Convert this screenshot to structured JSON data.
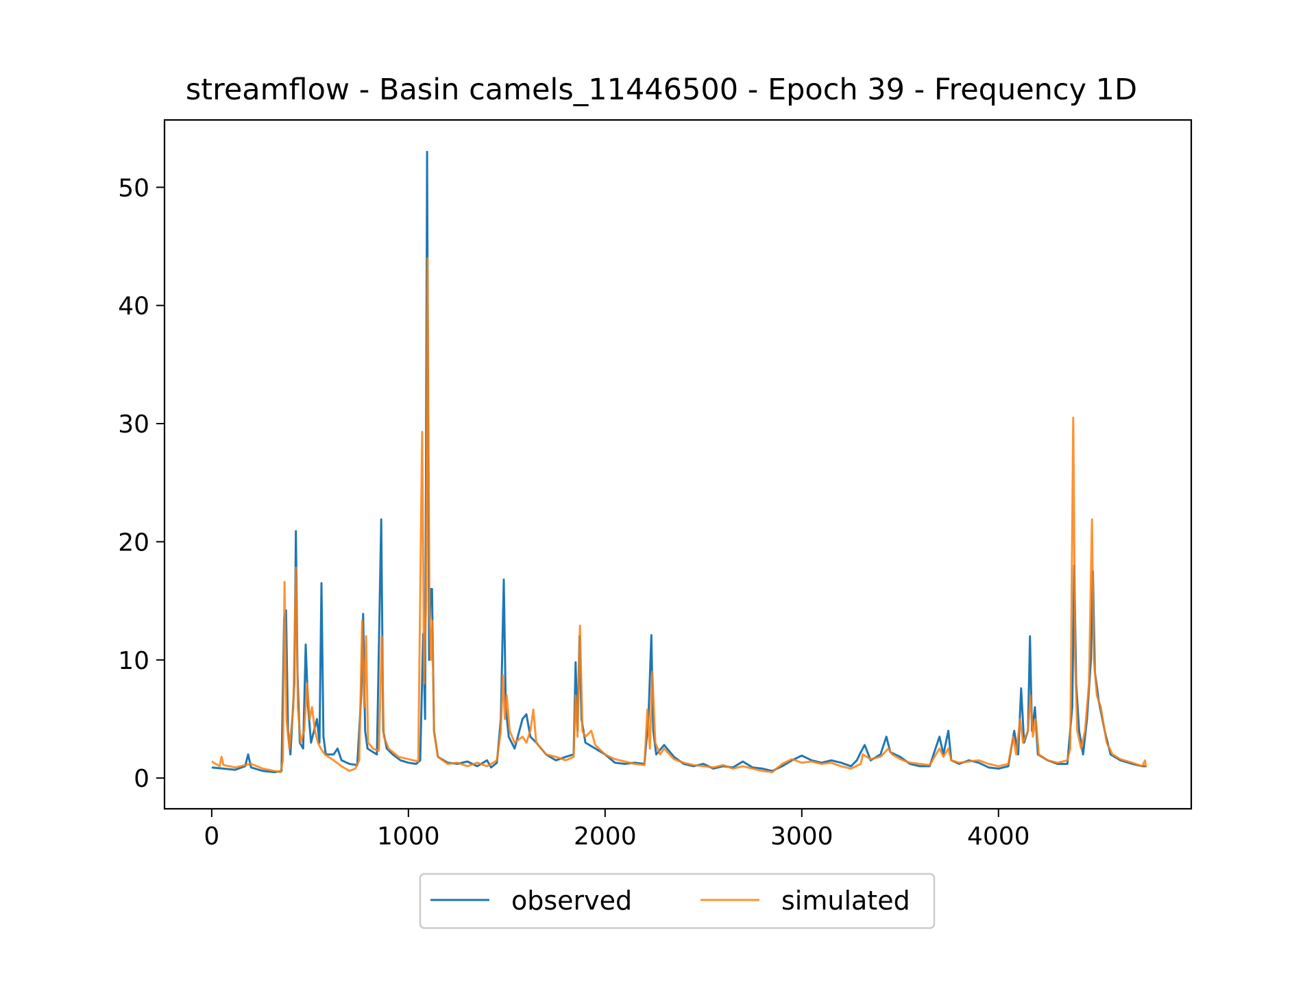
{
  "chart_data": {
    "type": "line",
    "title": "streamflow - Basin camels_11446500 - Epoch 39 - Frequency 1D",
    "xlabel": "",
    "ylabel": "",
    "xlim": [
      -240,
      4980
    ],
    "ylim": [
      -2.6,
      55.7
    ],
    "xticks": [
      0,
      1000,
      2000,
      3000,
      4000
    ],
    "yticks": [
      0,
      10,
      20,
      30,
      40,
      50
    ],
    "grid": false,
    "legend": {
      "placement": "bottom-center",
      "columns": 2
    },
    "series": [
      {
        "name": "observed",
        "color": "#1f77b4",
        "points": [
          [
            0,
            0.9
          ],
          [
            60,
            0.8
          ],
          [
            120,
            0.7
          ],
          [
            170,
            1.0
          ],
          [
            185,
            2.0
          ],
          [
            200,
            0.9
          ],
          [
            260,
            0.6
          ],
          [
            320,
            0.5
          ],
          [
            355,
            0.6
          ],
          [
            368,
            13.5
          ],
          [
            378,
            14.2
          ],
          [
            388,
            4.0
          ],
          [
            400,
            2.0
          ],
          [
            420,
            8.0
          ],
          [
            428,
            20.9
          ],
          [
            436,
            9.0
          ],
          [
            448,
            3.0
          ],
          [
            465,
            2.5
          ],
          [
            478,
            11.3
          ],
          [
            490,
            6.0
          ],
          [
            505,
            3.0
          ],
          [
            520,
            4.0
          ],
          [
            535,
            5.0
          ],
          [
            548,
            3.0
          ],
          [
            558,
            16.5
          ],
          [
            568,
            3.5
          ],
          [
            580,
            2.0
          ],
          [
            620,
            2.0
          ],
          [
            640,
            2.5
          ],
          [
            660,
            1.5
          ],
          [
            700,
            1.2
          ],
          [
            740,
            1.1
          ],
          [
            760,
            7.0
          ],
          [
            770,
            13.9
          ],
          [
            780,
            4.0
          ],
          [
            792,
            2.5
          ],
          [
            820,
            2.2
          ],
          [
            840,
            2.0
          ],
          [
            862,
            21.9
          ],
          [
            872,
            4.0
          ],
          [
            890,
            2.5
          ],
          [
            920,
            2.0
          ],
          [
            960,
            1.5
          ],
          [
            1000,
            1.3
          ],
          [
            1040,
            1.2
          ],
          [
            1060,
            1.5
          ],
          [
            1075,
            12.2
          ],
          [
            1085,
            5.0
          ],
          [
            1095,
            53.0
          ],
          [
            1105,
            10.0
          ],
          [
            1112,
            16.0
          ],
          [
            1120,
            16.0
          ],
          [
            1130,
            4.0
          ],
          [
            1150,
            1.8
          ],
          [
            1200,
            1.3
          ],
          [
            1250,
            1.2
          ],
          [
            1300,
            1.4
          ],
          [
            1350,
            1.0
          ],
          [
            1400,
            1.5
          ],
          [
            1420,
            0.9
          ],
          [
            1450,
            1.3
          ],
          [
            1470,
            5.0
          ],
          [
            1485,
            16.8
          ],
          [
            1495,
            6.0
          ],
          [
            1510,
            3.5
          ],
          [
            1540,
            2.5
          ],
          [
            1580,
            5.0
          ],
          [
            1600,
            5.4
          ],
          [
            1620,
            3.5
          ],
          [
            1650,
            3.0
          ],
          [
            1700,
            2.0
          ],
          [
            1750,
            1.5
          ],
          [
            1800,
            1.8
          ],
          [
            1840,
            2.0
          ],
          [
            1850,
            9.8
          ],
          [
            1860,
            4.0
          ],
          [
            1870,
            12.0
          ],
          [
            1880,
            5.0
          ],
          [
            1900,
            3.0
          ],
          [
            1950,
            2.5
          ],
          [
            2000,
            2.0
          ],
          [
            2050,
            1.3
          ],
          [
            2100,
            1.2
          ],
          [
            2150,
            1.3
          ],
          [
            2200,
            1.2
          ],
          [
            2220,
            5.0
          ],
          [
            2235,
            12.1
          ],
          [
            2245,
            4.0
          ],
          [
            2260,
            2.0
          ],
          [
            2300,
            2.8
          ],
          [
            2350,
            1.8
          ],
          [
            2400,
            1.2
          ],
          [
            2450,
            1.0
          ],
          [
            2500,
            1.2
          ],
          [
            2550,
            0.8
          ],
          [
            2600,
            1.0
          ],
          [
            2650,
            0.9
          ],
          [
            2700,
            1.4
          ],
          [
            2750,
            0.9
          ],
          [
            2800,
            0.8
          ],
          [
            2850,
            0.6
          ],
          [
            2900,
            1.0
          ],
          [
            2950,
            1.5
          ],
          [
            3000,
            1.9
          ],
          [
            3050,
            1.5
          ],
          [
            3100,
            1.3
          ],
          [
            3150,
            1.5
          ],
          [
            3200,
            1.3
          ],
          [
            3250,
            1.0
          ],
          [
            3280,
            1.5
          ],
          [
            3300,
            2.2
          ],
          [
            3320,
            2.8
          ],
          [
            3350,
            1.5
          ],
          [
            3400,
            2.0
          ],
          [
            3430,
            3.5
          ],
          [
            3450,
            2.2
          ],
          [
            3500,
            1.8
          ],
          [
            3550,
            1.2
          ],
          [
            3600,
            1.0
          ],
          [
            3650,
            1.0
          ],
          [
            3700,
            3.5
          ],
          [
            3720,
            2.0
          ],
          [
            3745,
            4.0
          ],
          [
            3760,
            1.5
          ],
          [
            3800,
            1.2
          ],
          [
            3850,
            1.5
          ],
          [
            3900,
            1.3
          ],
          [
            3950,
            0.9
          ],
          [
            4000,
            0.8
          ],
          [
            4050,
            1.0
          ],
          [
            4080,
            4.0
          ],
          [
            4100,
            2.0
          ],
          [
            4115,
            7.6
          ],
          [
            4130,
            3.0
          ],
          [
            4150,
            4.0
          ],
          [
            4160,
            12.0
          ],
          [
            4170,
            4.0
          ],
          [
            4185,
            6.0
          ],
          [
            4200,
            2.0
          ],
          [
            4250,
            1.5
          ],
          [
            4300,
            1.2
          ],
          [
            4350,
            1.2
          ],
          [
            4375,
            6.0
          ],
          [
            4385,
            18.0
          ],
          [
            4395,
            8.0
          ],
          [
            4410,
            4.0
          ],
          [
            4430,
            2.0
          ],
          [
            4450,
            5.0
          ],
          [
            4470,
            10.0
          ],
          [
            4480,
            17.5
          ],
          [
            4490,
            9.0
          ],
          [
            4510,
            6.5
          ],
          [
            4540,
            4.0
          ],
          [
            4570,
            2.0
          ],
          [
            4620,
            1.5
          ],
          [
            4680,
            1.2
          ],
          [
            4730,
            1.0
          ],
          [
            4750,
            1.0
          ]
        ]
      },
      {
        "name": "simulated",
        "color": "#ff7f0e",
        "points": [
          [
            0,
            1.4
          ],
          [
            40,
            1.0
          ],
          [
            50,
            1.8
          ],
          [
            60,
            1.1
          ],
          [
            120,
            0.9
          ],
          [
            170,
            1.1
          ],
          [
            200,
            1.2
          ],
          [
            260,
            0.8
          ],
          [
            320,
            0.6
          ],
          [
            350,
            0.5
          ],
          [
            362,
            1.5
          ],
          [
            370,
            16.6
          ],
          [
            380,
            5.0
          ],
          [
            395,
            2.5
          ],
          [
            415,
            6.0
          ],
          [
            428,
            17.8
          ],
          [
            438,
            6.0
          ],
          [
            452,
            3.0
          ],
          [
            470,
            4.0
          ],
          [
            485,
            8.0
          ],
          [
            498,
            5.0
          ],
          [
            510,
            6.0
          ],
          [
            525,
            4.0
          ],
          [
            540,
            3.0
          ],
          [
            555,
            2.5
          ],
          [
            575,
            2.0
          ],
          [
            620,
            1.5
          ],
          [
            660,
            1.0
          ],
          [
            700,
            0.6
          ],
          [
            730,
            0.8
          ],
          [
            750,
            1.5
          ],
          [
            765,
            13.3
          ],
          [
            775,
            6.0
          ],
          [
            785,
            12.0
          ],
          [
            795,
            3.0
          ],
          [
            820,
            2.5
          ],
          [
            850,
            2.3
          ],
          [
            865,
            12.0
          ],
          [
            875,
            3.5
          ],
          [
            900,
            2.5
          ],
          [
            950,
            1.8
          ],
          [
            1000,
            1.6
          ],
          [
            1050,
            1.4
          ],
          [
            1070,
            29.3
          ],
          [
            1080,
            8.0
          ],
          [
            1090,
            15.0
          ],
          [
            1097,
            44.0
          ],
          [
            1107,
            14.0
          ],
          [
            1115,
            10.0
          ],
          [
            1122,
            13.3
          ],
          [
            1130,
            4.0
          ],
          [
            1150,
            1.8
          ],
          [
            1200,
            1.2
          ],
          [
            1250,
            1.3
          ],
          [
            1300,
            1.0
          ],
          [
            1350,
            1.3
          ],
          [
            1400,
            1.0
          ],
          [
            1450,
            1.5
          ],
          [
            1470,
            4.0
          ],
          [
            1480,
            8.7
          ],
          [
            1490,
            5.0
          ],
          [
            1500,
            7.0
          ],
          [
            1515,
            4.0
          ],
          [
            1540,
            3.0
          ],
          [
            1580,
            3.5
          ],
          [
            1600,
            3.0
          ],
          [
            1620,
            4.0
          ],
          [
            1635,
            5.8
          ],
          [
            1650,
            3.0
          ],
          [
            1700,
            2.0
          ],
          [
            1750,
            1.8
          ],
          [
            1800,
            1.5
          ],
          [
            1840,
            1.8
          ],
          [
            1850,
            7.0
          ],
          [
            1860,
            3.5
          ],
          [
            1872,
            12.9
          ],
          [
            1885,
            4.0
          ],
          [
            1900,
            3.5
          ],
          [
            1930,
            4.0
          ],
          [
            1950,
            2.8
          ],
          [
            2000,
            2.0
          ],
          [
            2050,
            1.6
          ],
          [
            2100,
            1.4
          ],
          [
            2150,
            1.2
          ],
          [
            2200,
            1.1
          ],
          [
            2215,
            5.8
          ],
          [
            2228,
            2.5
          ],
          [
            2240,
            9.0
          ],
          [
            2255,
            3.0
          ],
          [
            2280,
            2.0
          ],
          [
            2300,
            2.5
          ],
          [
            2350,
            1.6
          ],
          [
            2400,
            1.3
          ],
          [
            2450,
            1.1
          ],
          [
            2500,
            1.0
          ],
          [
            2550,
            0.9
          ],
          [
            2600,
            1.1
          ],
          [
            2650,
            0.8
          ],
          [
            2700,
            1.0
          ],
          [
            2750,
            0.8
          ],
          [
            2800,
            0.6
          ],
          [
            2850,
            0.5
          ],
          [
            2900,
            1.2
          ],
          [
            2950,
            1.6
          ],
          [
            3000,
            1.3
          ],
          [
            3050,
            1.4
          ],
          [
            3100,
            1.2
          ],
          [
            3150,
            1.3
          ],
          [
            3200,
            1.0
          ],
          [
            3250,
            0.8
          ],
          [
            3300,
            1.2
          ],
          [
            3310,
            2.0
          ],
          [
            3350,
            1.6
          ],
          [
            3400,
            1.8
          ],
          [
            3440,
            2.5
          ],
          [
            3460,
            2.0
          ],
          [
            3500,
            1.6
          ],
          [
            3550,
            1.3
          ],
          [
            3600,
            1.2
          ],
          [
            3650,
            1.1
          ],
          [
            3700,
            2.5
          ],
          [
            3720,
            1.8
          ],
          [
            3745,
            2.5
          ],
          [
            3760,
            1.5
          ],
          [
            3800,
            1.3
          ],
          [
            3850,
            1.4
          ],
          [
            3900,
            1.5
          ],
          [
            3950,
            1.2
          ],
          [
            4000,
            1.0
          ],
          [
            4050,
            1.2
          ],
          [
            4075,
            3.5
          ],
          [
            4090,
            2.0
          ],
          [
            4110,
            5.0
          ],
          [
            4125,
            3.0
          ],
          [
            4150,
            4.0
          ],
          [
            4162,
            7.0
          ],
          [
            4175,
            3.5
          ],
          [
            4190,
            5.0
          ],
          [
            4205,
            2.0
          ],
          [
            4250,
            1.5
          ],
          [
            4300,
            1.3
          ],
          [
            4350,
            1.5
          ],
          [
            4365,
            2.5
          ],
          [
            4380,
            30.5
          ],
          [
            4390,
            10.0
          ],
          [
            4400,
            4.0
          ],
          [
            4420,
            2.5
          ],
          [
            4440,
            4.0
          ],
          [
            4460,
            8.0
          ],
          [
            4475,
            21.9
          ],
          [
            4485,
            10.0
          ],
          [
            4500,
            7.0
          ],
          [
            4520,
            6.0
          ],
          [
            4550,
            3.0
          ],
          [
            4580,
            2.0
          ],
          [
            4620,
            1.6
          ],
          [
            4680,
            1.3
          ],
          [
            4730,
            1.0
          ],
          [
            4745,
            1.5
          ],
          [
            4750,
            0.9
          ]
        ]
      }
    ]
  }
}
